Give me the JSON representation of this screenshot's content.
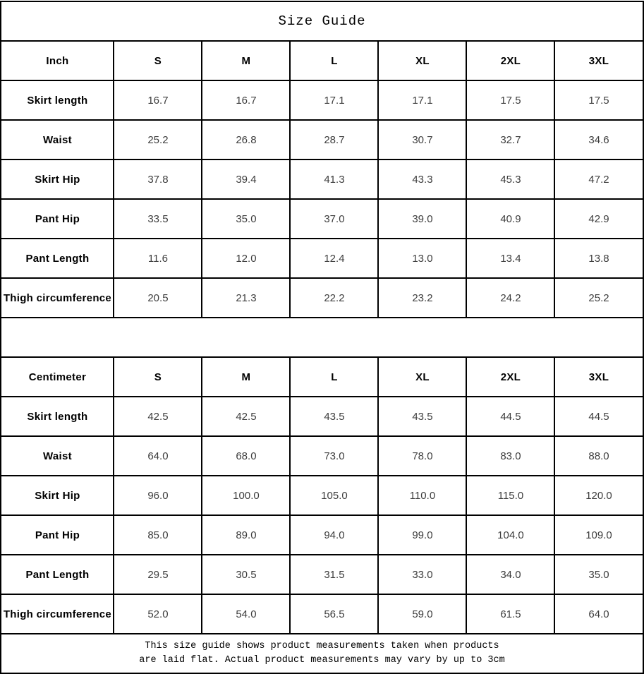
{
  "title": "Size Guide",
  "tables": [
    {
      "unit_header": "Inch",
      "size_headers": [
        "S",
        "M",
        "L",
        "XL",
        "2XL",
        "3XL"
      ],
      "rows": [
        {
          "label": "Skirt length",
          "values": [
            "16.7",
            "16.7",
            "17.1",
            "17.1",
            "17.5",
            "17.5"
          ]
        },
        {
          "label": "Waist",
          "values": [
            "25.2",
            "26.8",
            "28.7",
            "30.7",
            "32.7",
            "34.6"
          ]
        },
        {
          "label": "Skirt Hip",
          "values": [
            "37.8",
            "39.4",
            "41.3",
            "43.3",
            "45.3",
            "47.2"
          ]
        },
        {
          "label": "Pant Hip",
          "values": [
            "33.5",
            "35.0",
            "37.0",
            "39.0",
            "40.9",
            "42.9"
          ]
        },
        {
          "label": "Pant Length",
          "values": [
            "11.6",
            "12.0",
            "12.4",
            "13.0",
            "13.4",
            "13.8"
          ]
        },
        {
          "label": "Thigh circumference",
          "values": [
            "20.5",
            "21.3",
            "22.2",
            "23.2",
            "24.2",
            "25.2"
          ]
        }
      ]
    },
    {
      "unit_header": "Centimeter",
      "size_headers": [
        "S",
        "M",
        "L",
        "XL",
        "2XL",
        "3XL"
      ],
      "rows": [
        {
          "label": "Skirt length",
          "values": [
            "42.5",
            "42.5",
            "43.5",
            "43.5",
            "44.5",
            "44.5"
          ]
        },
        {
          "label": "Waist",
          "values": [
            "64.0",
            "68.0",
            "73.0",
            "78.0",
            "83.0",
            "88.0"
          ]
        },
        {
          "label": "Skirt Hip",
          "values": [
            "96.0",
            "100.0",
            "105.0",
            "110.0",
            "115.0",
            "120.0"
          ]
        },
        {
          "label": "Pant Hip",
          "values": [
            "85.0",
            "89.0",
            "94.0",
            "99.0",
            "104.0",
            "109.0"
          ]
        },
        {
          "label": "Pant Length",
          "values": [
            "29.5",
            "30.5",
            "31.5",
            "33.0",
            "34.0",
            "35.0"
          ]
        },
        {
          "label": "Thigh circumference",
          "values": [
            "52.0",
            "54.0",
            "56.5",
            "59.0",
            "61.5",
            "64.0"
          ]
        }
      ]
    }
  ],
  "footnote": {
    "line1": "This size guide shows product measurements taken when products",
    "line2": "are laid flat. Actual product measurements may vary by up to 3cm"
  },
  "colors": {
    "border": "#000000",
    "background": "#ffffff",
    "label_text": "#000000",
    "value_text": "#3d3d3d"
  }
}
